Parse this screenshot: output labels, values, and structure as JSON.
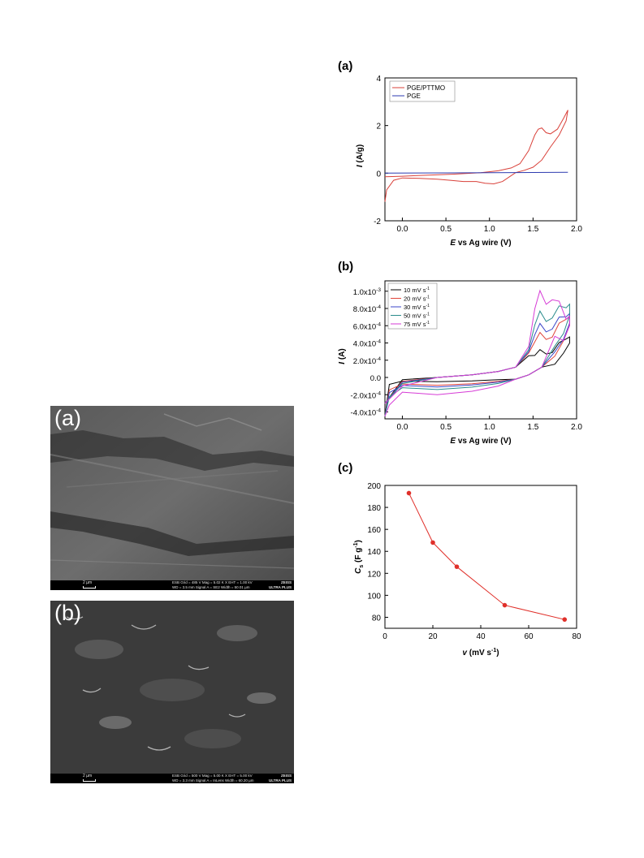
{
  "figure": {
    "sem_panels": [
      {
        "label": "(a)",
        "scale_text": "2 µm",
        "line1": "ESB Grid = 485 V    Mag = 5.02 K X    EHT = 1.00 kV",
        "line2": "WD = 3.5 mm    Signal A = SE2    Width = 50.01 µm",
        "brand1": "ZEISS",
        "brand2": "ULTRA PLUS"
      },
      {
        "label": "(b)",
        "scale_text": "2 µm",
        "line1": "ESB Grid = 500 V    Mag = 5.00 K X    EHT = 5.00 kV",
        "line2": "WD = 3.3 mm    Signal A = InLens    Width = 60.20 µm",
        "brand1": "ZEISS",
        "brand2": "ULTRA PLUS"
      }
    ]
  },
  "chart_data": [
    {
      "panel": "(a)",
      "type": "line",
      "xlabel_italic": "E",
      "xlabel_rest": " vs Ag wire (V)",
      "ylabel_italic": "I",
      "ylabel_rest": " (A/g)",
      "xlim": [
        -0.2,
        2.0
      ],
      "ylim": [
        -2,
        4
      ],
      "xticks": [
        "0.0",
        "0.5",
        "1.0",
        "1.5",
        "2.0"
      ],
      "xtick_values": [
        0.0,
        0.5,
        1.0,
        1.5,
        2.0
      ],
      "yticks": [
        "-2",
        "0",
        "2",
        "4"
      ],
      "ytick_values": [
        -2,
        0,
        2,
        4
      ],
      "legend_position": "top-left",
      "series": [
        {
          "name": "PGE/PTTMO",
          "color": "#d9413a",
          "x": [
            -0.2,
            0.0,
            0.3,
            0.6,
            0.9,
            1.1,
            1.25,
            1.35,
            1.45,
            1.52,
            1.56,
            1.6,
            1.65,
            1.7,
            1.78,
            1.85,
            1.9,
            1.88,
            1.8,
            1.7,
            1.6,
            1.5,
            1.4,
            1.3,
            1.25,
            1.15,
            1.05,
            0.95,
            0.85,
            0.7,
            0.55,
            0.4,
            0.2,
            0.0,
            -0.1,
            -0.18,
            -0.2
          ],
          "y": [
            -0.15,
            -0.13,
            -0.08,
            -0.04,
            0.02,
            0.1,
            0.22,
            0.4,
            0.95,
            1.6,
            1.85,
            1.9,
            1.7,
            1.65,
            1.85,
            2.3,
            2.65,
            2.2,
            1.6,
            1.1,
            0.55,
            0.25,
            0.12,
            0.02,
            -0.1,
            -0.35,
            -0.45,
            -0.42,
            -0.35,
            -0.35,
            -0.3,
            -0.25,
            -0.22,
            -0.2,
            -0.3,
            -0.7,
            -1.2
          ]
        },
        {
          "name": "PGE",
          "color": "#2d3bb0",
          "x": [
            -0.2,
            0.5,
            1.0,
            1.5,
            1.9
          ],
          "y": [
            0.0,
            0.01,
            0.02,
            0.03,
            0.04
          ]
        }
      ]
    },
    {
      "panel": "(b)",
      "type": "line",
      "xlabel_italic": "E",
      "xlabel_rest": " vs Ag wire (V)",
      "ylabel_italic": "I",
      "ylabel_rest": " (A)",
      "xlim": [
        -0.2,
        2.0
      ],
      "ylim": [
        -0.00048,
        0.00112
      ],
      "xticks": [
        "0.0",
        "0.5",
        "1.0",
        "1.5",
        "2.0"
      ],
      "xtick_values": [
        0.0,
        0.5,
        1.0,
        1.5,
        2.0
      ],
      "yticks": [
        "-4.0x10",
        "-2.0x10",
        "0.0",
        "2.0x10",
        "4.0x10",
        "6.0x10",
        "8.0x10",
        "1.0x10"
      ],
      "ytick_exponents": [
        "-4",
        "-4",
        "",
        "-4",
        "-4",
        "-4",
        "-4",
        "-3"
      ],
      "ytick_values": [
        -0.0004,
        -0.0002,
        0.0,
        0.0002,
        0.0004,
        0.0006,
        0.0008,
        0.001
      ],
      "legend_position": "top-left",
      "legend_unit": "mV s",
      "legend_unit_exp": "-1",
      "series": [
        {
          "name": "10",
          "color": "#000000",
          "peak": 0.00034,
          "end": 0.00047,
          "low": -5e-05
        },
        {
          "name": "20",
          "color": "#e0443a",
          "peak": 0.00055,
          "end": 0.00071,
          "low": -9e-05
        },
        {
          "name": "30",
          "color": "#3b46c8",
          "peak": 0.00066,
          "end": 0.00074,
          "low": -0.00011
        },
        {
          "name": "50",
          "color": "#2a8c8c",
          "peak": 0.00081,
          "end": 0.00085,
          "low": -0.00014
        },
        {
          "name": "75",
          "color": "#d63bd6",
          "peak": 0.00106,
          "end": 0.00071,
          "low": -0.0002
        }
      ]
    },
    {
      "panel": "(c)",
      "type": "scatter",
      "xlabel_italic": "v",
      "xlabel_rest": " (mV s",
      "xlabel_exp": "-1",
      "xlabel_close": ")",
      "ylabel_italic": "C",
      "ylabel_sub": "s",
      "ylabel_rest": " (F g",
      "ylabel_exp": "-1",
      "ylabel_close": ")",
      "xlim": [
        0,
        80
      ],
      "ylim": [
        70,
        200
      ],
      "xticks": [
        "0",
        "20",
        "40",
        "60",
        "80"
      ],
      "xtick_values": [
        0,
        20,
        40,
        60,
        80
      ],
      "yticks": [
        "80",
        "100",
        "120",
        "140",
        "160",
        "180",
        "200"
      ],
      "ytick_values": [
        80,
        100,
        120,
        140,
        160,
        180,
        200
      ],
      "color": "#e0302a",
      "x": [
        10,
        20,
        30,
        50,
        75
      ],
      "y": [
        193,
        148,
        126,
        91,
        78
      ]
    }
  ]
}
